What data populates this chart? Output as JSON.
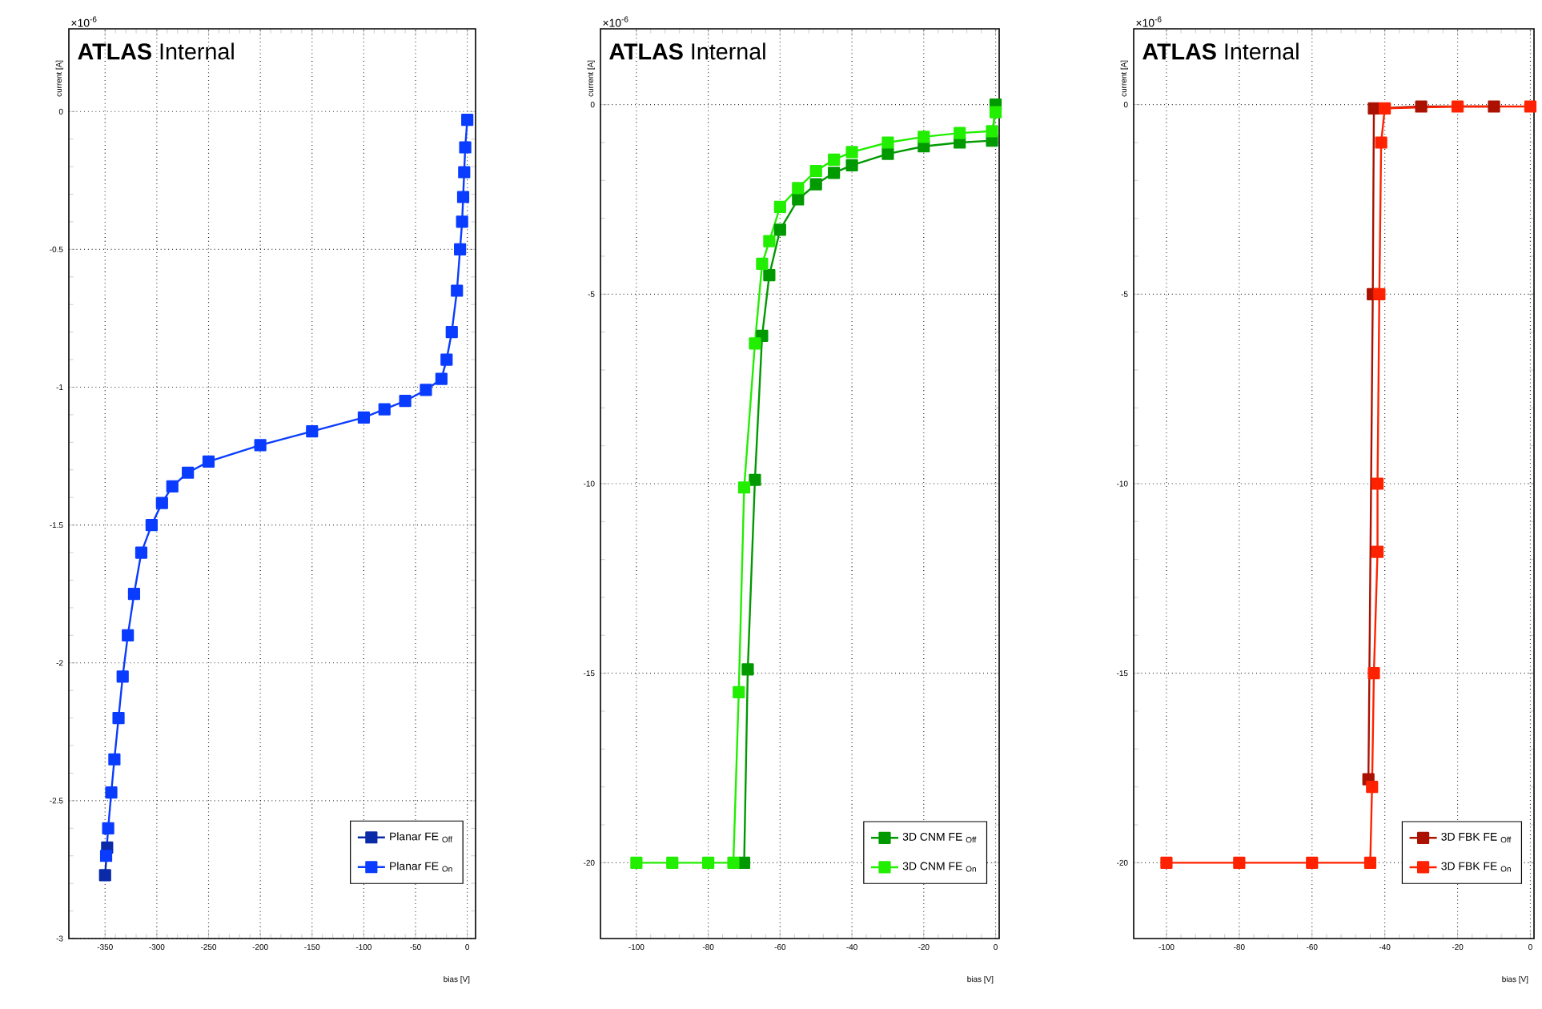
{
  "chart_data": [
    {
      "type": "line",
      "title": "**ATLAS** Internal",
      "xlabel": "bias [V]",
      "ylabel": "current [A]",
      "annotations": [
        "×10$^{-6}$"
      ],
      "xlim": [
        -385,
        8
      ],
      "ylim": [
        -3,
        0.3
      ],
      "xticks": [
        -350,
        -300,
        -250,
        -200,
        -150,
        -100,
        -50,
        0
      ],
      "yticks": [
        -3,
        -2.5,
        -2,
        -1.5,
        -1,
        -0.5,
        0
      ],
      "grid": true,
      "legend": "bottom right",
      "marker": "square",
      "line_style": "solid",
      "series": [
        {
          "name": "Planar FE $_{Off}$",
          "color": "#0a2aa8",
          "x": [
            -348,
            -350
          ],
          "values": [
            -2.67,
            -2.77
          ]
        },
        {
          "name": "Planar FE $_{On}$",
          "color": "#0a3cff",
          "x": [
            0,
            -2,
            -3,
            -4,
            -5,
            -7,
            -10,
            -15,
            -20,
            -25,
            -40,
            -60,
            -80,
            -100,
            -150,
            -200,
            -250,
            -270,
            -285,
            -295,
            -305,
            -315,
            -322,
            -328,
            -333,
            -337,
            -341,
            -344,
            -347,
            -349
          ],
          "values": [
            -0.03,
            -0.13,
            -0.22,
            -0.31,
            -0.4,
            -0.5,
            -0.65,
            -0.8,
            -0.9,
            -0.97,
            -1.01,
            -1.05,
            -1.08,
            -1.11,
            -1.16,
            -1.21,
            -1.27,
            -1.31,
            -1.36,
            -1.42,
            -1.5,
            -1.6,
            -1.75,
            -1.9,
            -2.05,
            -2.2,
            -2.35,
            -2.47,
            -2.6,
            -2.7
          ]
        }
      ]
    },
    {
      "type": "line",
      "title": "**ATLAS** Internal",
      "xlabel": "bias [V]",
      "ylabel": "current [A]",
      "annotations": [
        "×10$^{-6}$"
      ],
      "xlim": [
        -110,
        1
      ],
      "ylim": [
        -22,
        2
      ],
      "xticks": [
        -100,
        -80,
        -60,
        -40,
        -20,
        0
      ],
      "yticks": [
        -20,
        -15,
        -10,
        -5,
        0
      ],
      "grid": true,
      "legend": "bottom right",
      "marker": "square",
      "line_style": "solid",
      "series": [
        {
          "name": "3D CNM FE $_{Off}$",
          "color": "#009900",
          "x": [
            0,
            -1,
            -10,
            -20,
            -30,
            -40,
            -45,
            -50,
            -55,
            -60,
            -63,
            -65,
            -67,
            -69,
            -70
          ],
          "values": [
            0,
            -0.95,
            -1.0,
            -1.1,
            -1.3,
            -1.6,
            -1.8,
            -2.1,
            -2.5,
            -3.3,
            -4.5,
            -6.1,
            -9.9,
            -14.9,
            -20
          ]
        },
        {
          "name": "3D CNM FE $_{On}$",
          "color": "#22ee00",
          "x": [
            0,
            -1,
            -10,
            -20,
            -30,
            -40,
            -45,
            -50,
            -55,
            -60,
            -63,
            -65,
            -67,
            -70,
            -71.5,
            -73,
            -80,
            -90,
            -100
          ],
          "values": [
            -0.2,
            -0.7,
            -0.75,
            -0.85,
            -1.0,
            -1.25,
            -1.45,
            -1.75,
            -2.2,
            -2.7,
            -3.6,
            -4.2,
            -6.3,
            -10.1,
            -15.5,
            -20,
            -20,
            -20,
            -20
          ]
        }
      ]
    },
    {
      "type": "line",
      "title": "**ATLAS** Internal",
      "xlabel": "bias [V]",
      "ylabel": "current [A]",
      "annotations": [
        "×10$^{-6}$"
      ],
      "xlim": [
        -109,
        1
      ],
      "ylim": [
        -22,
        2
      ],
      "xticks": [
        -100,
        -80,
        -60,
        -40,
        -20,
        0
      ],
      "yticks": [
        -20,
        -15,
        -10,
        -5,
        0
      ],
      "grid": true,
      "legend": "bottom right",
      "marker": "square",
      "line_style": "solid",
      "series": [
        {
          "name": "3D FBK FE $_{Off}$",
          "color": "#aa1100",
          "x": [
            -10,
            -30,
            -43,
            -43.3,
            -44.5
          ],
          "values": [
            -0.05,
            -0.05,
            -0.1,
            -5,
            -17.8
          ]
        },
        {
          "name": "3D FBK FE $_{On}$",
          "color": "#ff2200",
          "x": [
            0,
            -20,
            -40,
            -41,
            -41.5,
            -42,
            -42,
            -43,
            -43.5,
            -44,
            -60,
            -80,
            -100
          ],
          "values": [
            -0.05,
            -0.05,
            -0.1,
            -1,
            -5,
            -10,
            -11.8,
            -15,
            -18,
            -20,
            -20,
            -20,
            -20
          ]
        }
      ]
    }
  ]
}
